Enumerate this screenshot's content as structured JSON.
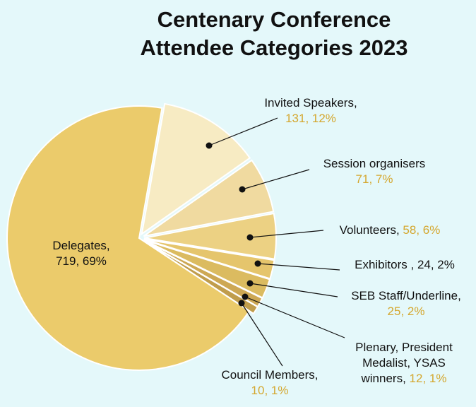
{
  "chart_data": {
    "type": "pie",
    "title": "Centenary Conference Attendee Categories 2023",
    "categories": [
      "Invited Speakers,",
      "Session organisers",
      "Volunteers,",
      "Exhibitors ,",
      "SEB Staff/Underline,",
      "Plenary, President Medalist, YSAS winners,",
      "Council Members,",
      "Delegates,"
    ],
    "values": [
      131,
      71,
      58,
      24,
      25,
      12,
      10,
      719
    ],
    "value_labels": [
      "131, 12%",
      "71, 7%",
      "58, 6%",
      "24, 2%",
      "25, 2%",
      "12, 1%",
      "10, 1%",
      "719, 69%"
    ],
    "colors": [
      "#f7ebc3",
      "#f0daa0",
      "#ecd183",
      "#e5c56c",
      "#dbbb60",
      "#cda854",
      "#c09d4c",
      "#ebcb6b"
    ],
    "value_label_colors": [
      "#d4a72e",
      "#d4a72e",
      "#d4a72e",
      "#111111",
      "#d4a72e",
      "#d4a72e",
      "#d4a72e",
      "#111111"
    ]
  }
}
